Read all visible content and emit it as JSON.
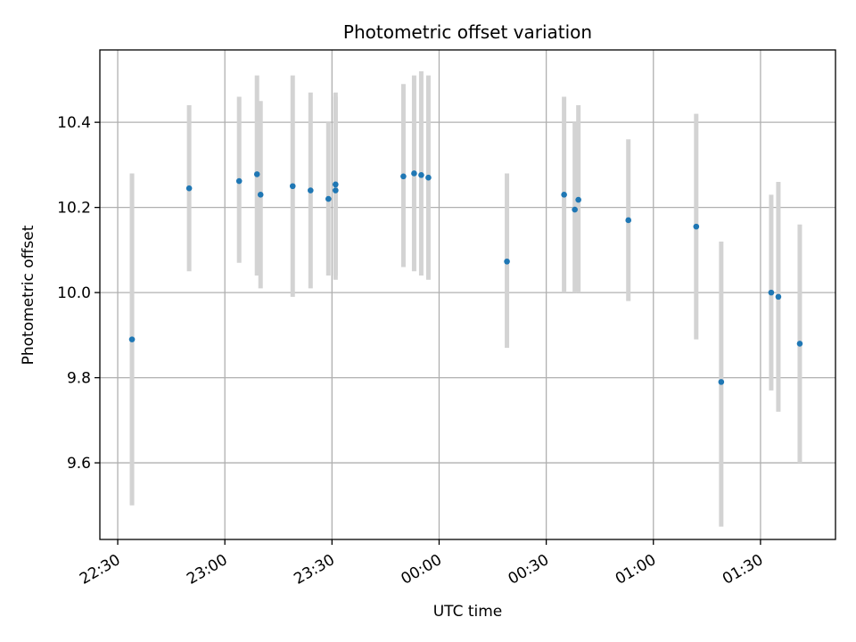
{
  "chart_data": {
    "type": "scatter",
    "title": "Photometric offset variation",
    "xlabel": "UTC time",
    "ylabel": "Photometric offset",
    "x_tick_labels": [
      "22:30",
      "23:00",
      "23:30",
      "00:00",
      "00:30",
      "01:00",
      "01:30"
    ],
    "y_tick_labels": [
      "9.6",
      "9.8",
      "10.0",
      "10.2",
      "10.4"
    ],
    "xlim": [
      "22:25",
      "01:51"
    ],
    "ylim": [
      9.42,
      10.57
    ],
    "grid": true,
    "colors": {
      "points": "#1f77b4",
      "errorbars": "#d3d3d3",
      "grid": "#b0b0b0"
    },
    "series": [
      {
        "points": [
          {
            "x": "22:34",
            "y": 9.89,
            "ylow": 9.5,
            "yhigh": 10.28
          },
          {
            "x": "22:50",
            "y": 10.245,
            "ylow": 10.05,
            "yhigh": 10.44
          },
          {
            "x": "23:04",
            "y": 10.262,
            "ylow": 10.07,
            "yhigh": 10.46
          },
          {
            "x": "23:09",
            "y": 10.278,
            "ylow": 10.04,
            "yhigh": 10.51
          },
          {
            "x": "23:10",
            "y": 10.23,
            "ylow": 10.01,
            "yhigh": 10.45
          },
          {
            "x": "23:19",
            "y": 10.25,
            "ylow": 9.99,
            "yhigh": 10.51
          },
          {
            "x": "23:24",
            "y": 10.24,
            "ylow": 10.01,
            "yhigh": 10.47
          },
          {
            "x": "23:29",
            "y": 10.22,
            "ylow": 10.04,
            "yhigh": 10.4
          },
          {
            "x": "23:31",
            "y": 10.254,
            "ylow": 10.04,
            "yhigh": 10.47
          },
          {
            "x": "23:31",
            "y": 10.24,
            "ylow": 10.03,
            "yhigh": 10.46
          },
          {
            "x": "23:50",
            "y": 10.273,
            "ylow": 10.06,
            "yhigh": 10.49
          },
          {
            "x": "23:53",
            "y": 10.28,
            "ylow": 10.05,
            "yhigh": 10.51
          },
          {
            "x": "23:55",
            "y": 10.276,
            "ylow": 10.04,
            "yhigh": 10.52
          },
          {
            "x": "23:57",
            "y": 10.27,
            "ylow": 10.03,
            "yhigh": 10.51
          },
          {
            "x": "00:19",
            "y": 10.073,
            "ylow": 9.87,
            "yhigh": 10.28
          },
          {
            "x": "00:35",
            "y": 10.23,
            "ylow": 10.0,
            "yhigh": 10.46
          },
          {
            "x": "00:38",
            "y": 10.195,
            "ylow": 10.0,
            "yhigh": 10.4
          },
          {
            "x": "00:39",
            "y": 10.218,
            "ylow": 10.0,
            "yhigh": 10.44
          },
          {
            "x": "00:53",
            "y": 10.17,
            "ylow": 9.98,
            "yhigh": 10.36
          },
          {
            "x": "01:12",
            "y": 10.155,
            "ylow": 9.89,
            "yhigh": 10.42
          },
          {
            "x": "01:19",
            "y": 9.79,
            "ylow": 9.45,
            "yhigh": 10.12
          },
          {
            "x": "01:33",
            "y": 10.0,
            "ylow": 9.77,
            "yhigh": 10.23
          },
          {
            "x": "01:35",
            "y": 9.99,
            "ylow": 9.72,
            "yhigh": 10.26
          },
          {
            "x": "01:41",
            "y": 9.88,
            "ylow": 9.6,
            "yhigh": 10.16
          }
        ]
      }
    ]
  }
}
